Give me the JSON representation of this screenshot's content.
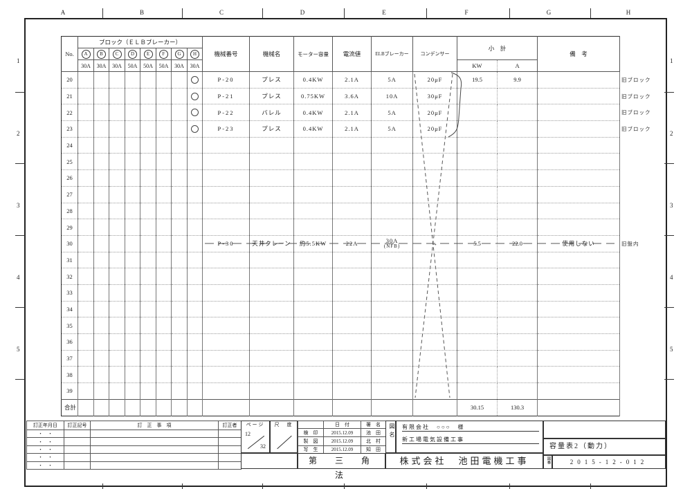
{
  "border": {
    "top_letters": [
      "A",
      "B",
      "C",
      "D",
      "E",
      "F",
      "G",
      "H"
    ],
    "side_numbers": [
      "1",
      "2",
      "3",
      "4",
      "5"
    ]
  },
  "table": {
    "headers": {
      "no": "No.",
      "block_title": "ブロック（ＥＬＢブレーカー）",
      "block_letters": [
        "A",
        "B",
        "C",
        "D",
        "E",
        "F",
        "G",
        "H"
      ],
      "block_amps": [
        "30A",
        "30A",
        "30A",
        "50A",
        "50A",
        "50A",
        "30A",
        "30A"
      ],
      "machine_no": "機械番号",
      "machine_name": "機械名",
      "motor": "モーター容量",
      "current": "電流値",
      "elb": "ELBブレーカー",
      "condenser": "コンデンサー",
      "subtotal": "小　計",
      "kw": "KW",
      "a": "A",
      "remarks": "備　考"
    },
    "rows": [
      {
        "no": "20",
        "mark": "circle",
        "machine_no": "P-20",
        "machine_name": "プレス",
        "motor": "0.4KW",
        "current": "2.1A",
        "elb": "5A",
        "condenser": "20μF",
        "kw": "19.5",
        "a": "9.9",
        "remarks": "",
        "margin": "旧ブロック"
      },
      {
        "no": "21",
        "mark": "circle",
        "machine_no": "P-21",
        "machine_name": "プレス",
        "motor": "0.75KW",
        "current": "3.6A",
        "elb": "10A",
        "condenser": "30μF",
        "kw": "",
        "a": "",
        "remarks": "",
        "margin": "旧ブロック"
      },
      {
        "no": "22",
        "mark": "circle",
        "machine_no": "P-22",
        "machine_name": "バレル",
        "motor": "0.4KW",
        "current": "2.1A",
        "elb": "5A",
        "condenser": "20μF",
        "kw": "",
        "a": "",
        "remarks": "",
        "margin": "旧ブロック"
      },
      {
        "no": "23",
        "mark": "circle",
        "machine_no": "P-23",
        "machine_name": "プレス",
        "motor": "0.4KW",
        "current": "2.1A",
        "elb": "5A",
        "condenser": "20μF",
        "kw": "",
        "a": "",
        "remarks": "",
        "margin": "旧ブロック"
      },
      {
        "no": "24"
      },
      {
        "no": "25"
      },
      {
        "no": "26"
      },
      {
        "no": "27"
      },
      {
        "no": "28"
      },
      {
        "no": "29"
      },
      {
        "no": "30",
        "machine_no": "P-30",
        "machine_name": "天井クレーン",
        "motor": "約5.5KW",
        "current": "22A",
        "elb": "30A",
        "elb2": "(NFB)",
        "condenser": "→",
        "kw": "5.5",
        "a": "22.0",
        "remarks": "使用しない",
        "margin": "旧盤内",
        "struck": true
      },
      {
        "no": "31"
      },
      {
        "no": "32"
      },
      {
        "no": "33"
      },
      {
        "no": "34"
      },
      {
        "no": "35"
      },
      {
        "no": "36"
      },
      {
        "no": "37"
      },
      {
        "no": "38"
      },
      {
        "no": "39"
      }
    ],
    "total": {
      "label": "合計",
      "kw": "30.15",
      "a": "130.3"
    }
  },
  "title_block": {
    "correction": {
      "headers": [
        "訂正年月日",
        "訂正記号",
        "訂　正　事　項",
        "訂正者"
      ],
      "rows": [
        "・　・",
        "・　・",
        "・　・",
        "・　・",
        "・　・"
      ]
    },
    "page": {
      "label": "ページ",
      "numerator": "12",
      "denominator": "32"
    },
    "scale": {
      "label": "尺　度"
    },
    "sign_table": {
      "date_header": "日　付",
      "name_header": "署　名",
      "rows": [
        {
          "label": "検　印",
          "date": "2015.12.09",
          "name": "池　田"
        },
        {
          "label": "製　図",
          "date": "2015.12.09",
          "name": "北　村"
        },
        {
          "label": "写　生",
          "date": "2015.12.09",
          "name": "知　田"
        }
      ]
    },
    "projection": "第　三　角　法",
    "zumei_label": "図名",
    "client": "有限会社　○○○　様",
    "project": "新工場電気設備工事",
    "company": "株式会社　池田電機工事",
    "sheet_title": "容量表2（動力）",
    "zuban_label": "図番",
    "drawing_no": "2015-12-012"
  }
}
